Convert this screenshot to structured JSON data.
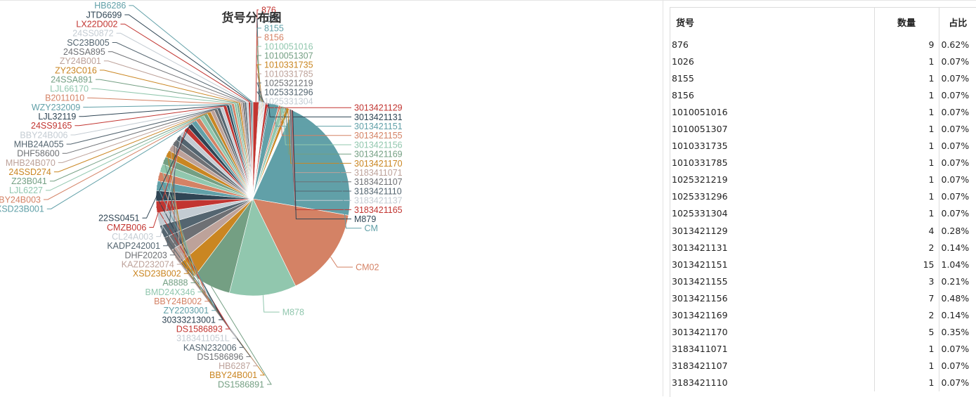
{
  "chart_data": {
    "type": "pie",
    "title": "货号分布图",
    "slices": [
      {
        "label": "876",
        "value": 9
      },
      {
        "label": "1026",
        "value": 1
      },
      {
        "label": "8155",
        "value": 1
      },
      {
        "label": "8156",
        "value": 1
      },
      {
        "label": "1010051016",
        "value": 1
      },
      {
        "label": "1010051307",
        "value": 1
      },
      {
        "label": "1010331735",
        "value": 1
      },
      {
        "label": "1010331785",
        "value": 1
      },
      {
        "label": "1025321219",
        "value": 1
      },
      {
        "label": "1025331296",
        "value": 1
      },
      {
        "label": "1025331304",
        "value": 1
      },
      {
        "label": "3013421129",
        "value": 4
      },
      {
        "label": "3013421131",
        "value": 2
      },
      {
        "label": "3013421151",
        "value": 15
      },
      {
        "label": "3013421155",
        "value": 3
      },
      {
        "label": "3013421156",
        "value": 7
      },
      {
        "label": "3013421169",
        "value": 2
      },
      {
        "label": "3013421170",
        "value": 5
      },
      {
        "label": "3183411071",
        "value": 1
      },
      {
        "label": "3183421107",
        "value": 1
      },
      {
        "label": "3183421110",
        "value": 1
      },
      {
        "label": "3183421137",
        "value": 1
      },
      {
        "label": "3183421165",
        "value": 1
      },
      {
        "label": "M879",
        "value": 1
      },
      {
        "label": "CM",
        "value": 195
      },
      {
        "label": "CM02",
        "value": 140
      },
      {
        "label": "M878",
        "value": 104
      },
      {
        "label": "DS1586891",
        "value": 59
      },
      {
        "label": "BBY24B001",
        "value": 30
      },
      {
        "label": "HB6287",
        "value": 24
      },
      {
        "label": "DS1586896",
        "value": 22
      },
      {
        "label": "KASN232006",
        "value": 20
      },
      {
        "label": "3183411051L",
        "value": 20
      },
      {
        "label": "DS1586893",
        "value": 18
      },
      {
        "label": "30333213001",
        "value": 16
      },
      {
        "label": "ZY2203001",
        "value": 15
      },
      {
        "label": "BBY24B002",
        "value": 14
      },
      {
        "label": "BMD24X346",
        "value": 13
      },
      {
        "label": "A8888",
        "value": 12
      },
      {
        "label": "XSD23B002",
        "value": 11
      },
      {
        "label": "KAZD232074",
        "value": 10
      },
      {
        "label": "DHF20203",
        "value": 10
      },
      {
        "label": "KADP242001",
        "value": 9
      },
      {
        "label": "CL24A003",
        "value": 9
      },
      {
        "label": "CMZB006",
        "value": 8
      },
      {
        "label": "22SS0451",
        "value": 8
      },
      {
        "label": "XSD23B001",
        "value": 8
      },
      {
        "label": "BBY24B003",
        "value": 7
      },
      {
        "label": "LJL6227",
        "value": 7
      },
      {
        "label": "Z23B041",
        "value": 6
      },
      {
        "label": "24SSD274",
        "value": 6
      },
      {
        "label": "MHB24B070",
        "value": 6
      },
      {
        "label": "DHF58600",
        "value": 5
      },
      {
        "label": "MHB24A055",
        "value": 5
      },
      {
        "label": "BBY24B006",
        "value": 5
      },
      {
        "label": "24SS9165",
        "value": 5
      },
      {
        "label": "LJL32119",
        "value": 4
      },
      {
        "label": "WZY232009",
        "value": 4
      },
      {
        "label": "B2011010",
        "value": 4
      },
      {
        "label": "LJL66170",
        "value": 4
      },
      {
        "label": "24SSA891",
        "value": 3
      },
      {
        "label": "ZY23C016",
        "value": 3
      },
      {
        "label": "ZY24B001",
        "value": 3
      },
      {
        "label": "24SSA895",
        "value": 3
      },
      {
        "label": "SC23B005",
        "value": 3
      },
      {
        "label": "24SS0872",
        "value": 3
      },
      {
        "label": "LX22D002",
        "value": 3
      },
      {
        "label": "JTD6699",
        "value": 2
      },
      {
        "label": "HB6286",
        "value": 2
      }
    ],
    "palette": [
      "#c23531",
      "#2f4554",
      "#61a0a8",
      "#d48265",
      "#91c7ae",
      "#749f83",
      "#ca8622",
      "#bda29a",
      "#6e7074",
      "#546570",
      "#c4ccd3"
    ],
    "legend": "none"
  },
  "table": {
    "headers": [
      "货号",
      "数量",
      "占比"
    ],
    "rows": [
      [
        "876",
        "9",
        "0.62%"
      ],
      [
        "1026",
        "1",
        "0.07%"
      ],
      [
        "8155",
        "1",
        "0.07%"
      ],
      [
        "8156",
        "1",
        "0.07%"
      ],
      [
        "1010051016",
        "1",
        "0.07%"
      ],
      [
        "1010051307",
        "1",
        "0.07%"
      ],
      [
        "1010331735",
        "1",
        "0.07%"
      ],
      [
        "1010331785",
        "1",
        "0.07%"
      ],
      [
        "1025321219",
        "1",
        "0.07%"
      ],
      [
        "1025331296",
        "1",
        "0.07%"
      ],
      [
        "1025331304",
        "1",
        "0.07%"
      ],
      [
        "3013421129",
        "4",
        "0.28%"
      ],
      [
        "3013421131",
        "2",
        "0.14%"
      ],
      [
        "3013421151",
        "15",
        "1.04%"
      ],
      [
        "3013421155",
        "3",
        "0.21%"
      ],
      [
        "3013421156",
        "7",
        "0.48%"
      ],
      [
        "3013421169",
        "2",
        "0.14%"
      ],
      [
        "3013421170",
        "5",
        "0.35%"
      ],
      [
        "3183411071",
        "1",
        "0.07%"
      ],
      [
        "3183421107",
        "1",
        "0.07%"
      ],
      [
        "3183421110",
        "1",
        "0.07%"
      ]
    ]
  }
}
